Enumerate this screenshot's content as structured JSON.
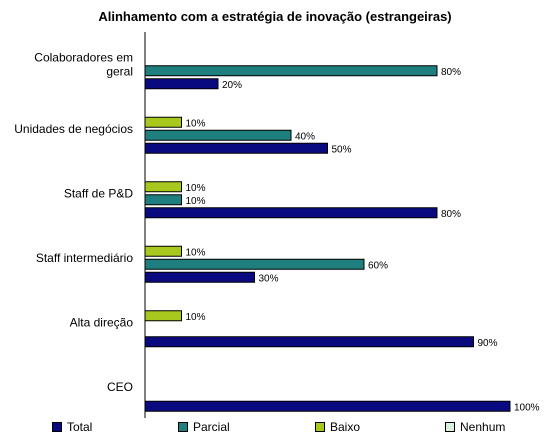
{
  "chart_data": {
    "type": "bar",
    "orientation": "horizontal",
    "title": "Alinhamento com a estratégia de inovação (estrangeiras)",
    "categories": [
      "Colaboradores em geral",
      "Unidades de negócios",
      "Staff de P&D",
      "Staff intermediário",
      "Alta direção",
      "CEO"
    ],
    "category_lines": [
      [
        "Colaboradores em",
        "geral"
      ],
      [
        "Unidades de negócios"
      ],
      [
        "Staff de P&D"
      ],
      [
        "Staff intermediário"
      ],
      [
        "Alta direção"
      ],
      [
        "CEO"
      ]
    ],
    "xlim": [
      0,
      100
    ],
    "value_suffix": "%",
    "grid": false,
    "legend_position": "bottom",
    "series": [
      {
        "name": "Nenhum",
        "color": "#d9f2dc",
        "values": [
          null,
          null,
          null,
          null,
          null,
          null
        ]
      },
      {
        "name": "Baixo",
        "color": "#a8c81e",
        "values": [
          null,
          10,
          10,
          10,
          10,
          null
        ]
      },
      {
        "name": "Parcial",
        "color": "#1f7f7f",
        "values": [
          80,
          40,
          10,
          60,
          null,
          null
        ]
      },
      {
        "name": "Total",
        "color": "#0a0a80",
        "values": [
          20,
          50,
          80,
          30,
          90,
          100
        ]
      }
    ],
    "legend_order": [
      "Total",
      "Parcial",
      "Baixo",
      "Nenhum"
    ]
  }
}
